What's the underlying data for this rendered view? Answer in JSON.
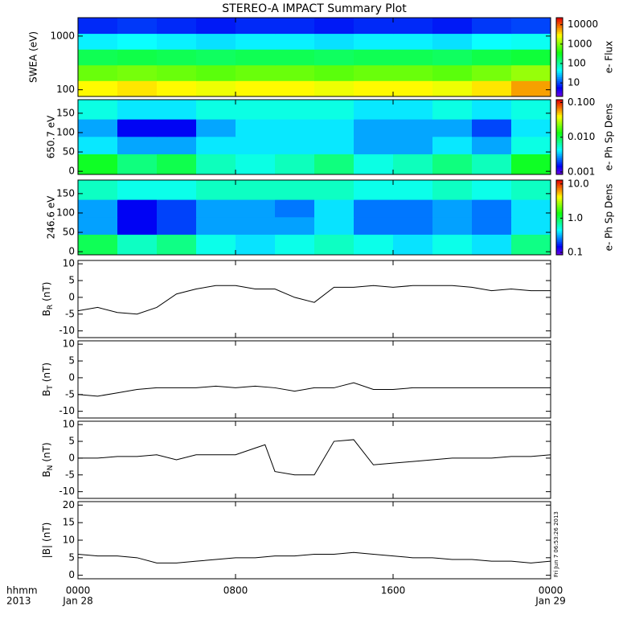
{
  "title": "STEREO-A IMPACT Summary Plot",
  "x_axis": {
    "xlim": [
      0,
      24
    ],
    "xticks": [
      {
        "value": 0,
        "label": "0000"
      },
      {
        "value": 8,
        "label": "0800"
      },
      {
        "value": 16,
        "label": "1600"
      },
      {
        "value": 24,
        "label": "0000"
      }
    ],
    "row_labels": [
      "hhmm",
      "2013"
    ],
    "date_labels": [
      {
        "value": 0,
        "label": "Jan 28"
      },
      {
        "value": 24,
        "label": "Jan 29"
      }
    ]
  },
  "timestamp": "Fri Jun  7 06:53:26 2013",
  "chart_data": [
    {
      "type": "heatmap",
      "ylabel": "SWEA (eV)",
      "log": true,
      "ylim": [
        75,
        2200
      ],
      "yticks": [
        100,
        1000
      ],
      "xbins": [
        0,
        2,
        4,
        6,
        8,
        10,
        12,
        14,
        16,
        18,
        20,
        22,
        24
      ],
      "ybins": [
        75,
        148,
        290,
        570,
        1120,
        2200
      ],
      "z": [
        [
          3000,
          3500,
          3000,
          2500,
          3000,
          3000,
          2500,
          3000,
          3000,
          2500,
          3500,
          6000
        ],
        [
          800,
          900,
          800,
          700,
          800,
          800,
          700,
          800,
          800,
          700,
          900,
          1200
        ],
        [
          200,
          220,
          200,
          180,
          200,
          200,
          180,
          200,
          200,
          180,
          220,
          250
        ],
        [
          40,
          45,
          40,
          35,
          40,
          40,
          35,
          40,
          40,
          35,
          45,
          50
        ],
        [
          8,
          9,
          8,
          7,
          8,
          8,
          7,
          8,
          8,
          7,
          9,
          10
        ]
      ],
      "colorbar": {
        "label": "e- Flux",
        "log": true,
        "clim": [
          2,
          23000
        ],
        "ticks": [
          10000,
          1000,
          100,
          10
        ]
      }
    },
    {
      "type": "heatmap",
      "ylabel": "650.7 eV",
      "log": false,
      "ylim": [
        -8,
        185
      ],
      "yticks": [
        0,
        50,
        100,
        150
      ],
      "xbins": [
        0,
        2,
        4,
        6,
        8,
        10,
        12,
        14,
        16,
        18,
        20,
        22,
        24
      ],
      "ybins": [
        -8,
        45,
        90,
        135,
        185
      ],
      "z": [
        [
          0.012,
          0.008,
          0.01,
          0.006,
          0.005,
          0.006,
          0.008,
          0.005,
          0.006,
          0.008,
          0.006,
          0.012
        ],
        [
          0.004,
          0.003,
          0.003,
          0.004,
          0.004,
          0.004,
          0.004,
          0.003,
          0.003,
          0.004,
          0.003,
          0.005
        ],
        [
          0.003,
          0.0015,
          0.0015,
          0.003,
          0.004,
          0.004,
          0.004,
          0.003,
          0.003,
          0.003,
          0.002,
          0.004
        ],
        [
          0.005,
          0.004,
          0.004,
          0.005,
          0.005,
          0.005,
          0.005,
          0.004,
          0.004,
          0.005,
          0.004,
          0.005
        ]
      ],
      "colorbar": {
        "label": "e- Ph Sp Dens",
        "log": true,
        "clim": [
          0.00085,
          0.12
        ],
        "ticks": [
          {
            "value": 0.1,
            "label": "0.100"
          },
          {
            "value": 0.01,
            "label": "0.010"
          },
          {
            "value": 0.001,
            "label": "0.001"
          }
        ]
      }
    },
    {
      "type": "heatmap",
      "ylabel": "246.6 eV",
      "log": false,
      "ylim": [
        -8,
        185
      ],
      "yticks": [
        0,
        50,
        100,
        150
      ],
      "xbins": [
        0,
        2,
        4,
        6,
        8,
        10,
        12,
        14,
        16,
        18,
        20,
        22,
        24
      ],
      "ybins": [
        -8,
        45,
        90,
        135,
        185
      ],
      "z": [
        [
          1.0,
          0.6,
          0.8,
          0.5,
          0.4,
          0.5,
          0.6,
          0.5,
          0.4,
          0.5,
          0.4,
          0.8
        ],
        [
          0.3,
          0.15,
          0.2,
          0.3,
          0.3,
          0.3,
          0.4,
          0.25,
          0.25,
          0.3,
          0.25,
          0.4
        ],
        [
          0.3,
          0.15,
          0.2,
          0.3,
          0.3,
          0.25,
          0.4,
          0.25,
          0.25,
          0.3,
          0.25,
          0.4
        ],
        [
          0.6,
          0.5,
          0.5,
          0.6,
          0.6,
          0.6,
          0.6,
          0.5,
          0.5,
          0.6,
          0.5,
          0.6
        ]
      ],
      "colorbar": {
        "label": "e- Ph Sp Dens",
        "log": true,
        "clim": [
          0.085,
          13
        ],
        "ticks": [
          {
            "value": 10,
            "label": "10.0"
          },
          {
            "value": 1,
            "label": "1.0"
          },
          {
            "value": 0.1,
            "label": "0.1"
          }
        ]
      }
    },
    {
      "type": "line",
      "ylabel": "B",
      "ylabel_sub": "R",
      "ylabel_unit": "(nT)",
      "ylim": [
        -12,
        11
      ],
      "yticks": [
        -10,
        -5,
        0,
        5,
        10
      ],
      "color": "#000000",
      "x": [
        0,
        1,
        2,
        3,
        4,
        5,
        6,
        7,
        8,
        9,
        10,
        11,
        12,
        13,
        14,
        15,
        16,
        17,
        18,
        19,
        20,
        21,
        22,
        23,
        24
      ],
      "values": [
        -4,
        -3,
        -4.5,
        -5,
        -3,
        1,
        2.5,
        3.5,
        3.5,
        2.5,
        2.5,
        0,
        -1.5,
        3,
        3,
        3.5,
        3,
        3.5,
        3.5,
        3.5,
        3,
        2,
        2.5,
        2,
        2
      ]
    },
    {
      "type": "line",
      "ylabel": "B",
      "ylabel_sub": "T",
      "ylabel_unit": "(nT)",
      "ylim": [
        -12,
        11
      ],
      "yticks": [
        -10,
        -5,
        0,
        5,
        10
      ],
      "color": "#000000",
      "x": [
        0,
        1,
        2,
        3,
        4,
        5,
        6,
        7,
        8,
        9,
        10,
        11,
        12,
        13,
        14,
        15,
        16,
        17,
        18,
        19,
        20,
        21,
        22,
        23,
        24
      ],
      "values": [
        -5,
        -5.5,
        -4.5,
        -3.5,
        -3,
        -3,
        -3,
        -2.5,
        -3,
        -2.5,
        -3,
        -4,
        -3,
        -3,
        -1.5,
        -3.5,
        -3.5,
        -3,
        -3,
        -3,
        -3,
        -3,
        -3,
        -3,
        -3
      ]
    },
    {
      "type": "line",
      "ylabel": "B",
      "ylabel_sub": "N",
      "ylabel_unit": "(nT)",
      "ylim": [
        -12,
        11
      ],
      "yticks": [
        -10,
        -5,
        0,
        5,
        10
      ],
      "color": "#000000",
      "x": [
        0,
        1,
        2,
        3,
        4,
        5,
        6,
        7,
        8,
        9,
        9.5,
        10,
        11,
        12,
        13,
        14,
        15,
        16,
        17,
        18,
        19,
        20,
        21,
        22,
        23,
        24
      ],
      "values": [
        0,
        0,
        0.5,
        0.5,
        1,
        -0.5,
        1,
        1,
        1,
        3,
        4,
        -4,
        -5,
        -5,
        5,
        5.5,
        -2,
        -1.5,
        -1,
        -0.5,
        0,
        0,
        0,
        0.5,
        0.5,
        1
      ]
    },
    {
      "type": "line",
      "ylabel": "|B|",
      "ylabel_unit": "(nT)",
      "ylim": [
        -1,
        21
      ],
      "yticks": [
        0,
        5,
        10,
        15,
        20
      ],
      "color": "#000000",
      "x": [
        0,
        1,
        2,
        3,
        4,
        5,
        6,
        7,
        8,
        9,
        10,
        11,
        12,
        13,
        14,
        15,
        16,
        17,
        18,
        19,
        20,
        21,
        22,
        23,
        24
      ],
      "values": [
        6,
        5.5,
        5.5,
        5,
        3.5,
        3.5,
        4,
        4.5,
        5,
        5,
        5.5,
        5.5,
        6,
        6,
        6.5,
        6,
        5.5,
        5,
        5,
        4.5,
        4.5,
        4,
        4,
        3.5,
        4
      ]
    }
  ]
}
